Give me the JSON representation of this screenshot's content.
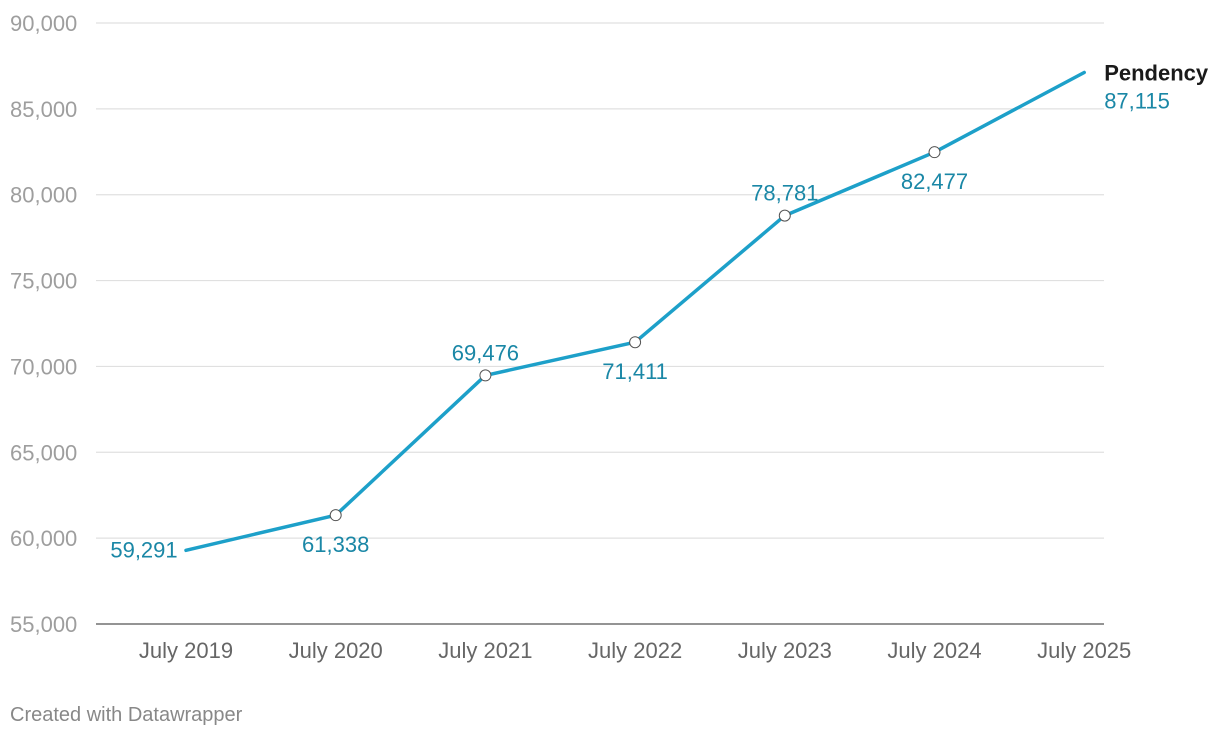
{
  "chart_data": {
    "type": "line",
    "x": [
      "July 2019",
      "July 2020",
      "July 2021",
      "July 2022",
      "July 2023",
      "July 2024",
      "July 2025"
    ],
    "series": [
      {
        "name": "Pendency",
        "values": [
          59291,
          61338,
          69476,
          71411,
          78781,
          82477,
          87115
        ]
      }
    ],
    "data_labels": [
      "59,291",
      "61,338",
      "69,476",
      "71,411",
      "78,781",
      "82,477",
      "87,115"
    ],
    "y_ticks": [
      55000,
      60000,
      65000,
      70000,
      75000,
      80000,
      85000,
      90000
    ],
    "y_tick_labels": [
      "55,000",
      "60,000",
      "65,000",
      "70,000",
      "75,000",
      "80,000",
      "85,000",
      "90,000"
    ],
    "ylim": [
      55000,
      90000
    ],
    "grid": true,
    "line_color": "#1da0c9",
    "label_color": "#1a87a6"
  },
  "footer": "Created with Datawrapper"
}
